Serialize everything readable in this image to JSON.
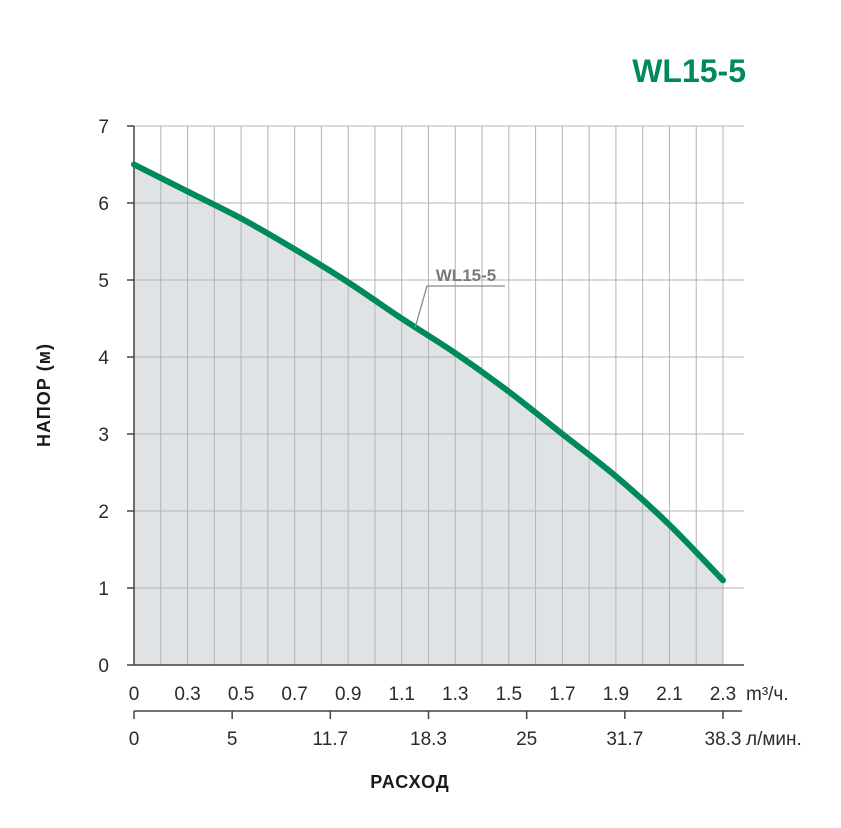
{
  "chart_data": {
    "type": "area",
    "title": "WL15-5",
    "ylabel": "НАПОР (м)",
    "xlabel": "РАСХОД",
    "ylim": [
      0,
      7
    ],
    "y_ticks": [
      "0",
      "1",
      "2",
      "3",
      "4",
      "5",
      "6",
      "7"
    ],
    "x_axis_primary": {
      "unit": "m³/ч.",
      "ticks": [
        "0",
        "0.3",
        "0.5",
        "0.7",
        "0.9",
        "1.1",
        "1.3",
        "1.5",
        "1.7",
        "1.9",
        "2.1",
        "2.3"
      ]
    },
    "x_axis_secondary": {
      "unit": "л/мин.",
      "ticks": [
        "0",
        "5",
        "11.7",
        "18.3",
        "25",
        "31.7",
        "38.3"
      ]
    },
    "grid": true,
    "series": [
      {
        "name": "WL15-5",
        "x": [
          0,
          0.3,
          0.5,
          0.7,
          0.9,
          1.1,
          1.3,
          1.5,
          1.7,
          1.9,
          2.1,
          2.3
        ],
        "values": [
          6.5,
          6.15,
          5.8,
          5.4,
          4.97,
          4.5,
          4.05,
          3.55,
          3.0,
          2.45,
          1.82,
          1.1
        ]
      }
    ],
    "colors": {
      "curve": "#008a5a",
      "fill": "#dfe3e5",
      "grid": "#b4b4b4",
      "title": "#008a5a",
      "axis": "#444444"
    }
  }
}
